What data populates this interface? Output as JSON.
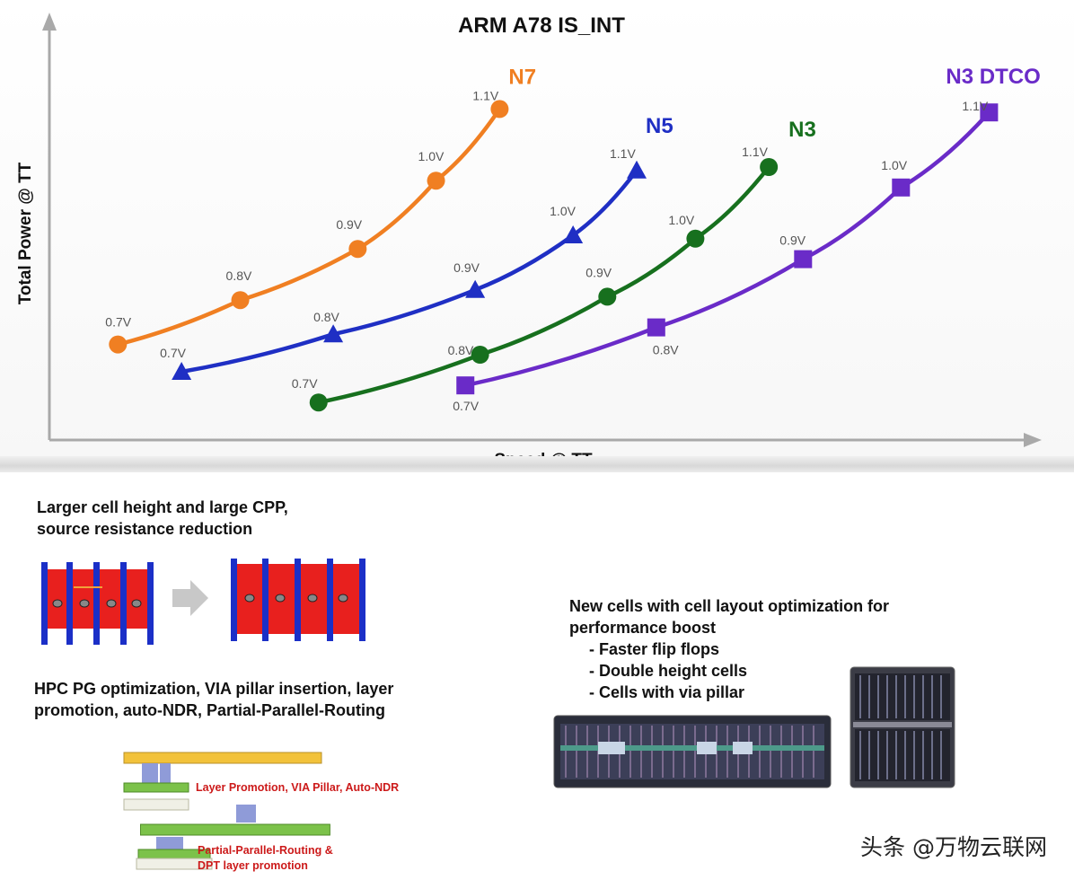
{
  "chart_data": {
    "type": "line",
    "title": "ARM A78 IS_INT",
    "xlabel": "Speed @ TT",
    "ylabel": "Total Power @ TT",
    "x_range": [
      0,
      100
    ],
    "y_range": [
      0,
      100
    ],
    "series": [
      {
        "name": "N7",
        "color": "#f07f22",
        "marker": "circle",
        "points": [
          {
            "label": "0.7V",
            "x": 7,
            "y": 28
          },
          {
            "label": "0.8V",
            "x": 19.5,
            "y": 41
          },
          {
            "label": "0.9V",
            "x": 31.5,
            "y": 56
          },
          {
            "label": "1.0V",
            "x": 39.5,
            "y": 76
          },
          {
            "label": "1.1V",
            "x": 46,
            "y": 97
          }
        ]
      },
      {
        "name": "N5",
        "color": "#1f2fc4",
        "marker": "triangle",
        "points": [
          {
            "label": "0.7V",
            "x": 13.5,
            "y": 20
          },
          {
            "label": "0.8V",
            "x": 29,
            "y": 31
          },
          {
            "label": "0.9V",
            "x": 43.5,
            "y": 44
          },
          {
            "label": "1.0V",
            "x": 53.5,
            "y": 60
          },
          {
            "label": "1.1V",
            "x": 60,
            "y": 79
          }
        ]
      },
      {
        "name": "N3",
        "color": "#17701e",
        "marker": "circle",
        "points": [
          {
            "label": "0.7V",
            "x": 27.5,
            "y": 11
          },
          {
            "label": "0.8V",
            "x": 44,
            "y": 25
          },
          {
            "label": "0.9V",
            "x": 57,
            "y": 42
          },
          {
            "label": "1.0V",
            "x": 66,
            "y": 59
          },
          {
            "label": "1.1V",
            "x": 73.5,
            "y": 80
          }
        ]
      },
      {
        "name": "N3 DTCO",
        "color": "#6a2bc8",
        "marker": "square",
        "points": [
          {
            "label": "0.7V",
            "x": 42.5,
            "y": 16
          },
          {
            "label": "0.8V",
            "x": 62,
            "y": 33
          },
          {
            "label": "0.9V",
            "x": 77,
            "y": 53
          },
          {
            "label": "1.0V",
            "x": 87,
            "y": 74
          },
          {
            "label": "1.1V",
            "x": 96,
            "y": 96
          }
        ]
      }
    ]
  },
  "notes": {
    "cell_height": [
      "Larger cell height and large CPP,",
      "source resistance reduction"
    ],
    "hpc": [
      "HPC PG optimization, VIA pillar insertion, layer",
      "promotion, auto-NDR, Partial-Parallel-Routing"
    ],
    "pg_label_1": "Layer Promotion, VIA Pillar, Auto-NDR",
    "pg_label_2a": "Partial-Parallel-Routing &",
    "pg_label_2b": "DPT layer promotion",
    "new_cells_title": [
      "New cells with cell layout optimization for",
      "performance boost"
    ],
    "new_cells_items": [
      "- Faster flip flops",
      "- Double height cells",
      "- Cells with via pillar"
    ]
  },
  "watermark": "头条 @万物云联网"
}
